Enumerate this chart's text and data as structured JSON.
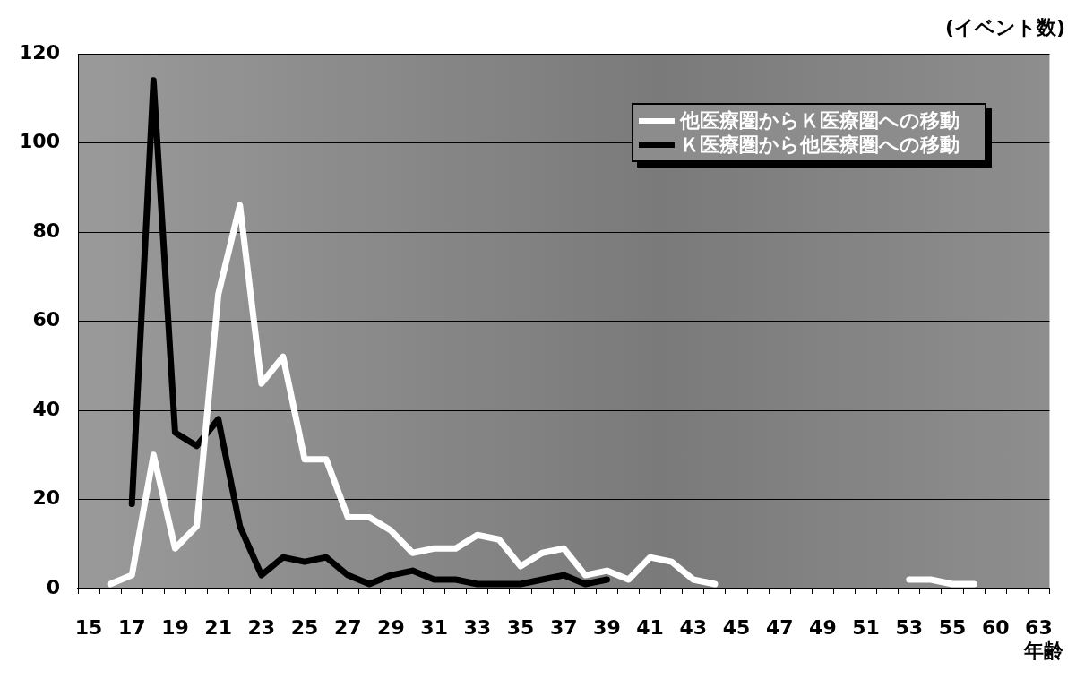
{
  "chart_data": {
    "type": "line",
    "xlabel": "年齢",
    "ylabel": "(イベント数)",
    "categories": [
      "15",
      null,
      "17",
      null,
      "19",
      null,
      "21",
      null,
      "23",
      null,
      "25",
      null,
      "27",
      null,
      "29",
      null,
      "31",
      null,
      "33",
      null,
      "35",
      null,
      "37",
      null,
      "39",
      null,
      "41",
      null,
      "43",
      null,
      "45",
      null,
      "47",
      null,
      "49",
      null,
      "51",
      null,
      "53",
      null,
      "55",
      null,
      "60",
      null,
      "63"
    ],
    "series": [
      {
        "name": "他医療圏からＫ医療圏への移動",
        "color": "#ffffff",
        "values": [
          null,
          1,
          3,
          30,
          9,
          14,
          66,
          86,
          46,
          52,
          29,
          29,
          16,
          16,
          13,
          8,
          9,
          9,
          12,
          11,
          5,
          8,
          9,
          3,
          4,
          2,
          7,
          6,
          2,
          1,
          null,
          null,
          null,
          null,
          null,
          null,
          null,
          null,
          2,
          2,
          1,
          1,
          null,
          null,
          null
        ]
      },
      {
        "name": "Ｋ医療圏から他医療圏への移動",
        "color": "#000000",
        "values": [
          null,
          null,
          19,
          114,
          35,
          32,
          38,
          14,
          3,
          7,
          6,
          7,
          3,
          1,
          3,
          4,
          2,
          2,
          1,
          1,
          1,
          2,
          3,
          1,
          2,
          null,
          null,
          null,
          null,
          null,
          null,
          null,
          null,
          null,
          null,
          null,
          null,
          null,
          null,
          null,
          null,
          null,
          null,
          null,
          null
        ]
      }
    ],
    "ylim": [
      0,
      120
    ],
    "yticks": [
      0,
      20,
      40,
      60,
      80,
      100,
      120
    ],
    "grid": "y",
    "legend": "top right",
    "marker": "none",
    "line_style": "solid"
  }
}
